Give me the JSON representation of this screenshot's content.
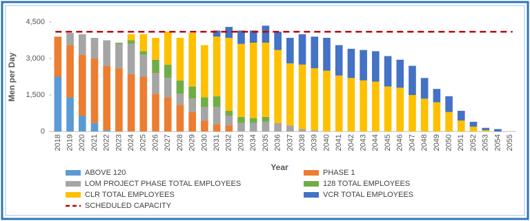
{
  "chart_data": {
    "type": "stacked-bar",
    "y_label": "Men per Day",
    "x_label": "Year",
    "categories": [
      "2018",
      "2019",
      "2020",
      "2021",
      "2022",
      "2023",
      "2024",
      "2025",
      "2026",
      "2027",
      "2028",
      "2029",
      "2030",
      "2031",
      "2032",
      "2033",
      "2034",
      "2035",
      "2036",
      "2037",
      "2038",
      "2039",
      "2040",
      "2041",
      "2042",
      "2043",
      "2044",
      "2045",
      "2046",
      "2047",
      "2048",
      "2049",
      "2050",
      "2051",
      "2052",
      "2053",
      "2054",
      "2055"
    ],
    "series": [
      {
        "name": "ABOVE 120",
        "color": "#5b9bd5",
        "values": [
          2250,
          1400,
          650,
          350,
          50,
          0,
          0,
          0,
          0,
          0,
          0,
          0,
          0,
          0,
          0,
          0,
          0,
          0,
          0,
          0,
          0,
          0,
          0,
          0,
          0,
          0,
          0,
          0,
          0,
          0,
          0,
          0,
          0,
          0,
          0,
          0,
          0,
          0
        ]
      },
      {
        "name": "PHASE 1",
        "color": "#ed7d31",
        "values": [
          1650,
          2150,
          2500,
          2650,
          2650,
          2600,
          2350,
          2250,
          1550,
          1400,
          1100,
          800,
          450,
          300,
          250,
          0,
          0,
          0,
          0,
          0,
          0,
          0,
          0,
          0,
          0,
          0,
          0,
          0,
          0,
          0,
          0,
          0,
          0,
          0,
          0,
          0,
          0,
          0
        ]
      },
      {
        "name": "LOM PROJECT PHASE TOTAL EMPLOYEES",
        "color": "#a5a5a5",
        "values": [
          0,
          500,
          850,
          850,
          1050,
          1000,
          1250,
          900,
          850,
          800,
          450,
          550,
          550,
          700,
          400,
          350,
          350,
          400,
          350,
          250,
          100,
          50,
          0,
          0,
          0,
          0,
          0,
          0,
          0,
          0,
          0,
          0,
          0,
          0,
          0,
          0,
          0,
          0
        ]
      },
      {
        "name": "128 TOTAL EMPLOYEES",
        "color": "#70ad47",
        "values": [
          0,
          0,
          0,
          0,
          0,
          50,
          150,
          150,
          550,
          550,
          550,
          500,
          400,
          450,
          200,
          250,
          200,
          200,
          0,
          0,
          0,
          0,
          0,
          0,
          0,
          0,
          0,
          0,
          0,
          0,
          0,
          0,
          0,
          0,
          0,
          0,
          0,
          0
        ]
      },
      {
        "name": "CLR TOTAL EMPLOYEES",
        "color": "#ffc000",
        "values": [
          0,
          0,
          0,
          0,
          0,
          0,
          250,
          700,
          900,
          1350,
          1750,
          2200,
          2150,
          2450,
          3000,
          3000,
          3100,
          3050,
          3000,
          2550,
          2650,
          2550,
          2500,
          2300,
          2200,
          2100,
          2050,
          1850,
          1800,
          1500,
          1350,
          1200,
          800,
          450,
          200,
          50,
          0,
          0
        ]
      },
      {
        "name": "VCR TOTAL EMPLOYEES",
        "color": "#4472c4",
        "values": [
          0,
          0,
          0,
          0,
          0,
          0,
          0,
          0,
          0,
          0,
          0,
          0,
          0,
          250,
          450,
          550,
          500,
          700,
          750,
          1050,
          1250,
          1300,
          1350,
          1250,
          1200,
          1250,
          1250,
          1250,
          1150,
          1200,
          850,
          550,
          650,
          400,
          200,
          100,
          100,
          0
        ]
      }
    ],
    "capacity": {
      "name": "SCHEDULED CAPACITY",
      "value": 4100,
      "color": "#c00000"
    },
    "ylim": [
      0,
      4500
    ],
    "yticks": [
      0,
      {
        "value": 1500,
        "label": "1,500"
      },
      {
        "value": 3000,
        "label": "3,000"
      },
      {
        "value": 4500,
        "label": "4,500"
      }
    ],
    "grid": false
  }
}
